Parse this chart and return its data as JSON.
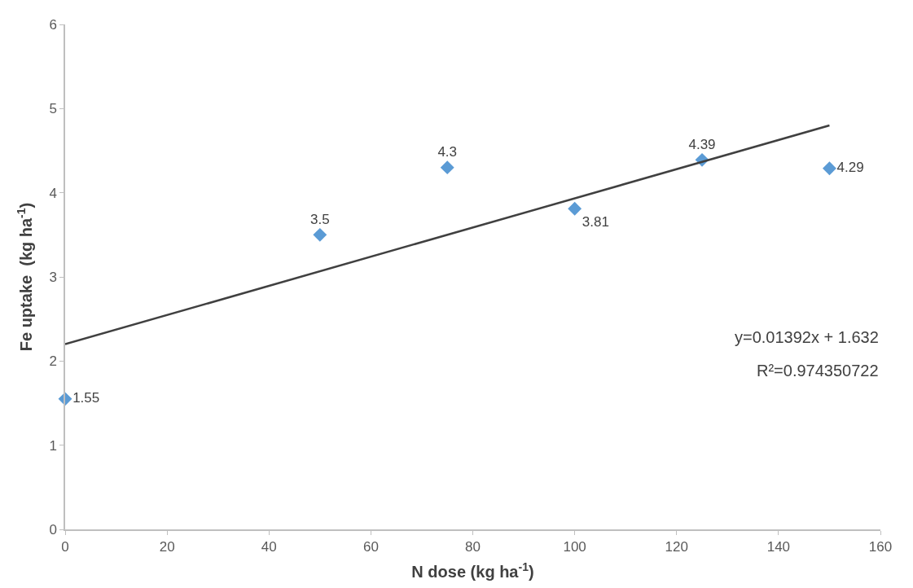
{
  "chart_data": {
    "type": "scatter",
    "xlabel": "N dose (kg ha$^{-1}$)",
    "ylabel": "Fe uptake  (kg ha$^{-1}$)",
    "series": [
      {
        "color": "#5b9bd5",
        "x": [
          0,
          50,
          75,
          100,
          125,
          150
        ],
        "values": [
          1.55,
          3.5,
          4.3,
          3.81,
          4.39,
          4.29
        ],
        "marker": "diamond",
        "data_labels": true
      },
      {
        "type": "line",
        "color": "#404040",
        "x": [
          0,
          150
        ],
        "values": [
          2.2,
          4.8
        ],
        "marker": "none",
        "line_style": "solid"
      }
    ],
    "annotations": [
      "y=0.01392x + 1.632",
      "R²=0.974350722"
    ],
    "xlim": [
      0,
      160
    ],
    "xticks": [
      0,
      20,
      40,
      60,
      80,
      100,
      120,
      140,
      160
    ],
    "ylim": [
      0,
      6
    ],
    "yticks": [
      0,
      1,
      2,
      3,
      4,
      5,
      6
    ]
  }
}
